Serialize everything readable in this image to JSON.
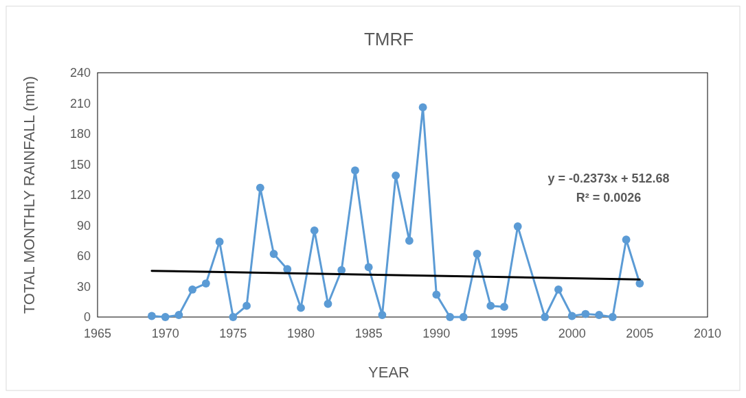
{
  "chart_data": {
    "type": "line",
    "title": "TMRF",
    "xlabel": "YEAR",
    "ylabel": "TOTAL MONTHLY RAINFALL (mm)",
    "xlim": [
      1965,
      2010
    ],
    "xticks": [
      1965,
      1970,
      1975,
      1980,
      1985,
      1990,
      1995,
      2000,
      2005,
      2010
    ],
    "ylim": [
      0,
      240
    ],
    "yticks": [
      0,
      30,
      60,
      90,
      120,
      150,
      180,
      210,
      240
    ],
    "grid": false,
    "marker": "circle",
    "line_style": "solid",
    "annotations": [
      "y = -0.2373x + 512.68",
      "R² = 0.0026"
    ],
    "series": [
      {
        "color": "#5b9bd5",
        "x": [
          1969,
          1970,
          1971,
          1972,
          1973,
          1974,
          1975,
          1976,
          1977,
          1978,
          1979,
          1980,
          1981,
          1982,
          1983,
          1984,
          1985,
          1986,
          1987,
          1988,
          1989,
          1990,
          1991,
          1992,
          1993,
          1994,
          1995,
          1996,
          1998,
          1999,
          2000,
          2001,
          2002,
          2003,
          2004,
          2005
        ],
        "values": [
          1,
          0,
          2,
          27,
          33,
          74,
          0,
          11,
          127,
          62,
          47,
          9,
          85,
          13,
          46,
          144,
          49,
          2,
          139,
          75,
          206,
          22,
          0,
          0,
          62,
          11,
          10,
          89,
          0,
          27,
          1,
          3,
          2,
          0,
          76,
          33
        ]
      },
      {
        "type": "line",
        "color": "#000000",
        "marker": "none",
        "x": [
          1969,
          2005
        ],
        "values": [
          45.4,
          36.9
        ]
      }
    ]
  }
}
